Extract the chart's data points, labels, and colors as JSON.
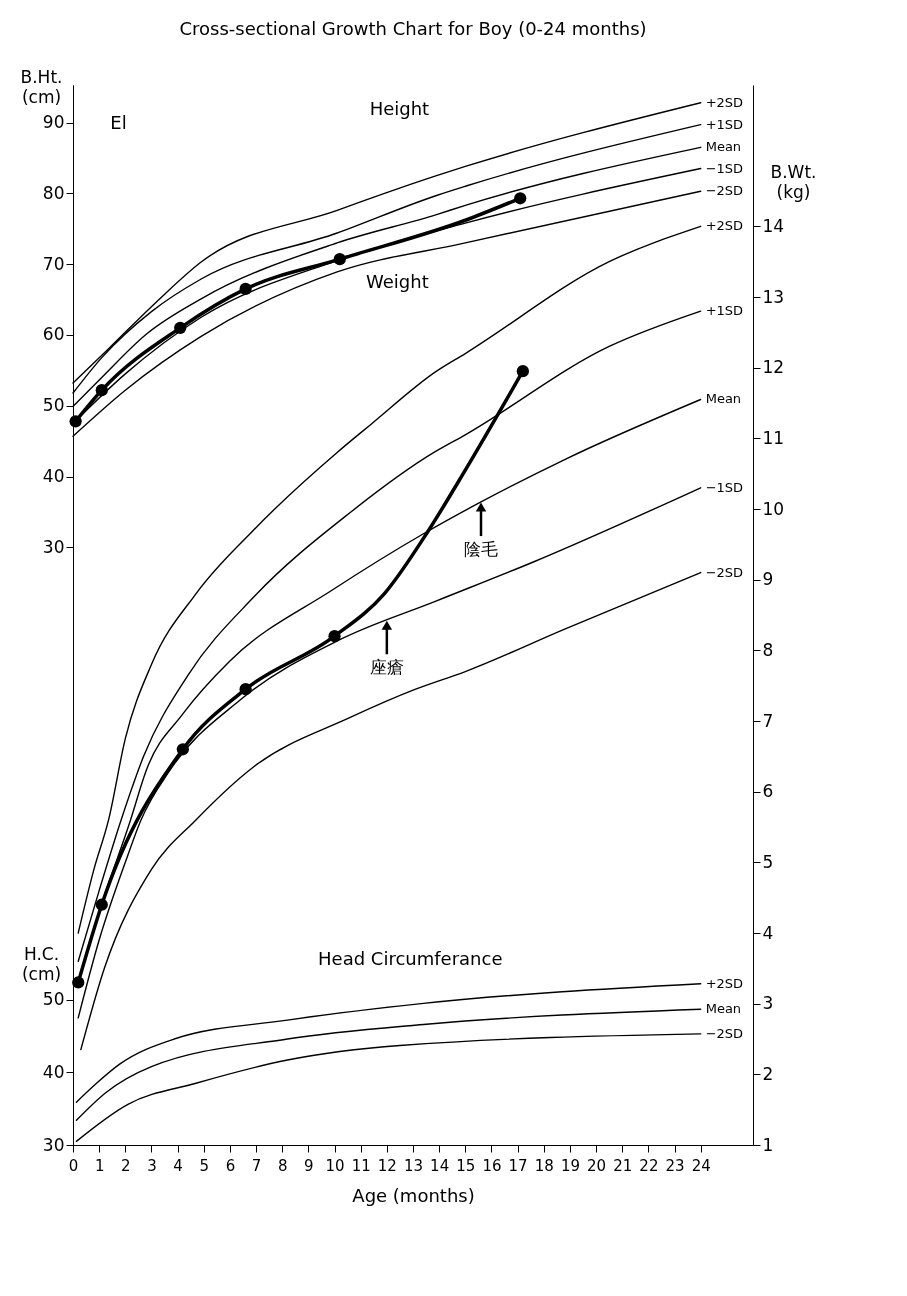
{
  "chart_data": {
    "type": "line",
    "title": "Cross-sectional Growth Chart for Boy (0-24 months)",
    "xlabel": "Age (months)",
    "ylabel": "B.Ht.\n(cm)",
    "y2label": "B.Wt.\n(kg)",
    "y3label": "H.C.\n(cm)",
    "xlim": [
      0,
      26
    ],
    "xticks": [
      0,
      1,
      2,
      3,
      4,
      5,
      6,
      7,
      8,
      9,
      10,
      11,
      12,
      13,
      14,
      15,
      16,
      17,
      18,
      19,
      20,
      21,
      22,
      23,
      24
    ],
    "ylim": [
      -54.4,
      95.3
    ],
    "yticks": [
      30,
      40,
      50,
      60,
      70,
      80,
      90
    ],
    "y2lim": [
      1,
      16
    ],
    "y2ticks": [
      1,
      2,
      3,
      4,
      5,
      6,
      7,
      8,
      9,
      10,
      11,
      12,
      13,
      14
    ],
    "y3lim": [
      30,
      176
    ],
    "y3ticks": [
      30,
      40,
      50
    ],
    "series": [
      {
        "name": "+2SD",
        "color": "#000000",
        "x": [
          0,
          1.4,
          3.2,
          4.9,
          10.1,
          13.9,
          15,
          24
        ],
        "values": [
          53.2,
          58.2,
          64.7,
          70.3,
          77.6,
          82.5,
          83.8,
          92.8
        ]
      },
      {
        "name": "+1SD",
        "color": "#000000",
        "x": [
          0,
          1.1,
          3,
          4.9,
          10.1,
          13.9,
          15,
          24
        ],
        "values": [
          51.8,
          56.8,
          63.3,
          67.9,
          74.4,
          79.7,
          81.0,
          89.7
        ]
      },
      {
        "name": "Mean",
        "color": "#000000",
        "x": [
          0,
          1.1,
          2.8,
          4.9,
          10.1,
          13.9,
          15,
          24
        ],
        "values": [
          49.9,
          54.0,
          60.1,
          65.1,
          73.0,
          77.0,
          78.3,
          86.5
        ]
      },
      {
        "name": "−1SD",
        "color": "#000000",
        "x": [
          0,
          2,
          4.9,
          10.1,
          15,
          24
        ],
        "values": [
          47.5,
          54.5,
          62.5,
          70.5,
          75.8,
          83.5
        ]
      },
      {
        "name": "−2SD",
        "color": "#000000",
        "x": [
          0,
          2,
          4.9,
          10.1,
          15,
          24
        ],
        "values": [
          45.7,
          52.2,
          59.8,
          68.9,
          73.0,
          80.3
        ]
      },
      {
        "color": "#000000",
        "x": [
          0.1,
          1.1,
          4.1,
          6.6,
          10.2,
          15,
          17.1
        ],
        "values": [
          47.8,
          52.2,
          61.0,
          66.5,
          70.7,
          76.2,
          79.3
        ]
      },
      {
        "type": "scatter",
        "marker": "circle",
        "color": "#000000",
        "x": [
          0.1,
          1.1,
          4.1,
          6.6,
          10.2,
          17.1
        ],
        "values": [
          47.8,
          52.2,
          61.0,
          66.5,
          70.7,
          79.3
        ]
      },
      {
        "name": "+2SD",
        "axis": "y2",
        "color": "#000000",
        "x": [
          0.2,
          0.8,
          1.36,
          2,
          3,
          4.7,
          6.9,
          10.1,
          11.4,
          13.9,
          15,
          20.5,
          24
        ],
        "values": [
          4.0,
          4.9,
          5.6,
          6.75,
          7.8,
          8.8,
          9.7,
          10.8,
          11.2,
          11.95,
          12.2,
          13.5,
          14.0
        ]
      },
      {
        "name": "+1SD",
        "axis": "y2",
        "color": "#000000",
        "x": [
          0.2,
          1,
          1.84,
          2.7,
          4.4,
          6.9,
          10.6,
          13.8,
          15,
          20.5,
          24
        ],
        "values": [
          3.6,
          4.6,
          5.6,
          6.5,
          7.65,
          8.75,
          9.95,
          10.8,
          11.05,
          12.3,
          12.8
        ]
      },
      {
        "name": "Mean",
        "axis": "y2",
        "color": "#000000",
        "x": [
          0.2,
          1,
          2.2,
          2.8,
          4.2,
          6,
          9.9,
          13.4,
          15.6,
          18.8,
          24
        ],
        "values": [
          3.3,
          4.3,
          5.6,
          6.3,
          7.1,
          7.85,
          8.85,
          9.65,
          10.1,
          10.7,
          11.55
        ]
      },
      {
        "name": "−1SD",
        "axis": "y2",
        "color": "#000000",
        "x": [
          0.2,
          1,
          2,
          2.6,
          3.7,
          6.4,
          10.2,
          13.9,
          17.6,
          24
        ],
        "values": [
          2.8,
          3.9,
          5.0,
          5.6,
          6.3,
          7.3,
          8.15,
          8.7,
          9.25,
          10.3
        ]
      },
      {
        "name": "−2SD",
        "axis": "y2",
        "color": "#000000",
        "x": [
          0.3,
          1.2,
          3,
          4.7,
          6.9,
          10.6,
          13.1,
          15,
          18.8,
          24
        ],
        "values": [
          2.35,
          3.5,
          4.9,
          5.6,
          6.35,
          7.05,
          7.45,
          7.7,
          8.3,
          9.1
        ]
      },
      {
        "axis": "y2",
        "color": "#000000",
        "x": [
          0.2,
          1.1,
          4.2,
          6.6,
          10,
          11.9,
          13.6,
          15,
          17.2
        ],
        "values": [
          3.3,
          4.4,
          6.6,
          7.45,
          8.2,
          8.8,
          9.7,
          10.55,
          11.95
        ]
      },
      {
        "type": "scatter",
        "marker": "circle",
        "axis": "y2",
        "color": "#000000",
        "x": [
          0.2,
          1.1,
          4.2,
          6.6,
          10,
          17.2
        ],
        "values": [
          3.3,
          4.4,
          6.6,
          7.45,
          8.2,
          11.95
        ]
      },
      {
        "name": "+2SD",
        "axis": "y3",
        "color": "#000000",
        "x": [
          0.13,
          0.9,
          1.77,
          3.87,
          8.2,
          13.4,
          24
        ],
        "values": [
          35.9,
          38.5,
          41.1,
          44.6,
          47.2,
          49.5,
          52.2
        ]
      },
      {
        "name": "Mean",
        "axis": "y3",
        "color": "#000000",
        "x": [
          0.13,
          1.25,
          3,
          8.2,
          13.4,
          24
        ],
        "values": [
          33.4,
          37.2,
          40.8,
          44.6,
          46.6,
          48.7
        ]
      },
      {
        "name": "−2SD",
        "axis": "y3",
        "color": "#000000",
        "x": [
          0.13,
          2.1,
          4.7,
          8.2,
          12.5,
          24
        ],
        "values": [
          30.5,
          35.6,
          38.5,
          41.7,
          43.7,
          45.3
        ]
      }
    ],
    "annotations": [
      "El",
      "Height",
      "Weight",
      "Head Circumferance",
      {
        "text": "座瘡",
        "x": 12.0,
        "y": 19.7
      },
      {
        "text": "陰毛",
        "x": 15.6,
        "y": 36.4
      }
    ]
  }
}
